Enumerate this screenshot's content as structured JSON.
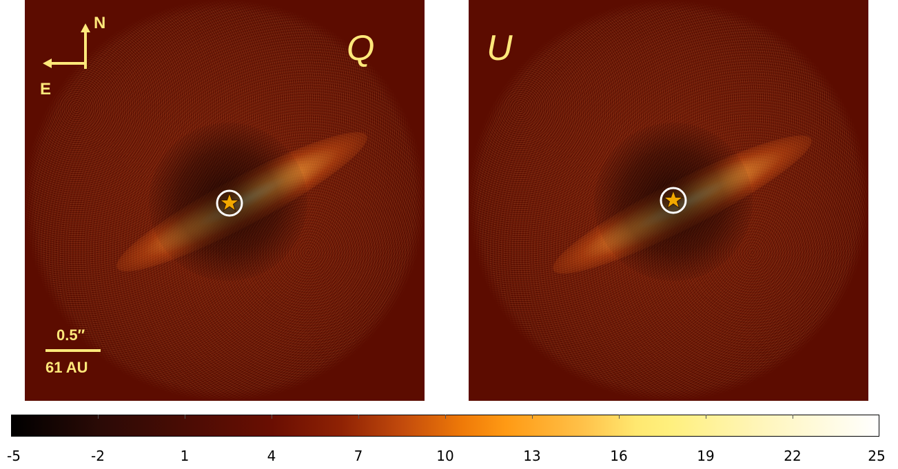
{
  "panels": [
    {
      "id": "Q",
      "label": "Q"
    },
    {
      "id": "U",
      "label": "U"
    }
  ],
  "compass": {
    "north": "N",
    "east": "E"
  },
  "scale": {
    "angular": "0.5″",
    "physical": "61 AU"
  },
  "colorbar": {
    "tick_labels": [
      "-5",
      "-2",
      "1",
      "4",
      "7",
      "10",
      "13",
      "16",
      "19",
      "22",
      "25"
    ],
    "min": -5,
    "max": 25,
    "colors": [
      "#000000",
      "#6a0e02",
      "#ef7a08",
      "#fff07e",
      "#ffffff"
    ]
  }
}
